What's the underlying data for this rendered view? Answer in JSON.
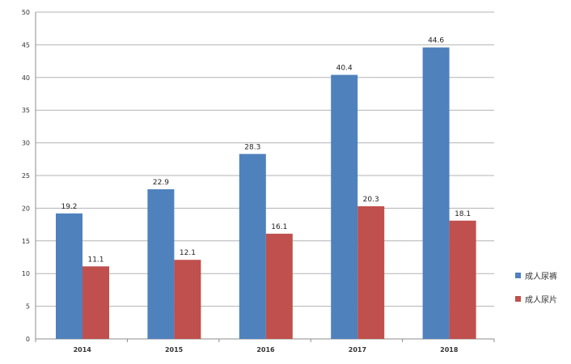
{
  "chart_data": {
    "type": "bar",
    "title": "",
    "xlabel": "",
    "ylabel": "",
    "ylim": [
      0,
      50
    ],
    "yticks": [
      0,
      5,
      10,
      15,
      20,
      25,
      30,
      35,
      40,
      45,
      50
    ],
    "grid": true,
    "legend_position": "right",
    "categories": [
      "2014",
      "2015",
      "2016",
      "2017",
      "2018"
    ],
    "series": [
      {
        "name": "成人尿裤",
        "color": "#4f81bd",
        "values": [
          19.2,
          22.9,
          28.3,
          40.4,
          44.6
        ]
      },
      {
        "name": "成人尿片",
        "color": "#c0504d",
        "values": [
          11.1,
          12.1,
          16.1,
          20.3,
          18.1
        ]
      }
    ]
  }
}
